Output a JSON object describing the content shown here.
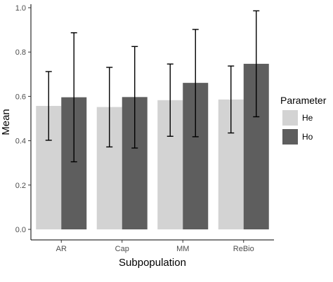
{
  "chart_data": {
    "type": "bar",
    "title": "",
    "xlabel": "Subpopulation",
    "ylabel": "Mean",
    "categories": [
      "AR",
      "Cap",
      "MM",
      "ReBio"
    ],
    "ylim": [
      0,
      1.0
    ],
    "yticks": [
      "0.0",
      "0.2",
      "0.4",
      "0.6",
      "0.8",
      "1.0"
    ],
    "grid": false,
    "legend": {
      "title": "Parameter",
      "placement": "right"
    },
    "series": [
      {
        "name": "He",
        "color": "#d3d3d3",
        "values": [
          0.557,
          0.552,
          0.583,
          0.586
        ],
        "error_low": [
          0.402,
          0.372,
          0.42,
          0.435
        ],
        "error_high": [
          0.712,
          0.731,
          0.746,
          0.737
        ]
      },
      {
        "name": "Ho",
        "color": "#5e5e5e",
        "values": [
          0.596,
          0.597,
          0.661,
          0.747
        ],
        "error_low": [
          0.305,
          0.367,
          0.418,
          0.508
        ],
        "error_high": [
          0.887,
          0.825,
          0.902,
          0.986
        ]
      }
    ]
  }
}
